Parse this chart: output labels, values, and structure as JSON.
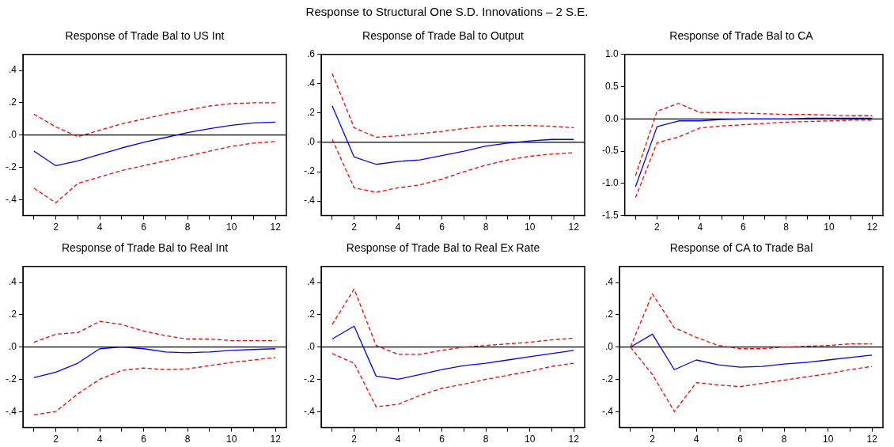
{
  "chart_data": [
    {
      "type": "line",
      "title": "Response of Trade Bal to US Int",
      "annotations": [
        "Response to Structural One S.D. Innovations – 2 S.E."
      ],
      "x": [
        1,
        2,
        3,
        4,
        5,
        6,
        7,
        8,
        9,
        10,
        11,
        12
      ],
      "xlim": [
        0.5,
        12.5
      ],
      "xticks": [
        {
          "value": 1,
          "label": null
        },
        2,
        {
          "value": 3,
          "label": null
        },
        4,
        {
          "value": 5,
          "label": null
        },
        6,
        {
          "value": 7,
          "label": null
        },
        8,
        {
          "value": 9,
          "label": null
        },
        10,
        {
          "value": 11,
          "label": null
        },
        12
      ],
      "ylim": [
        -0.5,
        0.5
      ],
      "yticks": [
        {
          "value": -0.4,
          "label": "-.4"
        },
        {
          "value": -0.2,
          "label": "-.2"
        },
        {
          "value": 0,
          "label": ".0"
        },
        {
          "value": 0.2,
          "label": ".2"
        },
        {
          "value": 0.4,
          "label": ".4"
        }
      ],
      "grid": false,
      "legend": false,
      "ref_lines": [
        {
          "axis": "y",
          "value": 0,
          "label": null,
          "color": "#000000"
        }
      ],
      "series": [
        {
          "color": "#0000ff",
          "line_style": "solid",
          "values": [
            -0.1,
            -0.19,
            -0.16,
            -0.12,
            -0.08,
            -0.045,
            -0.015,
            0.015,
            0.04,
            0.06,
            0.075,
            0.08
          ]
        },
        {
          "color": "#ff0000",
          "line_style": "dashed",
          "values": [
            0.13,
            0.05,
            -0.01,
            0.03,
            0.07,
            0.1,
            0.13,
            0.155,
            0.18,
            0.195,
            0.2,
            0.2
          ]
        },
        {
          "color": "#ff0000",
          "line_style": "dashed",
          "values": [
            -0.33,
            -0.42,
            -0.3,
            -0.26,
            -0.22,
            -0.19,
            -0.16,
            -0.13,
            -0.1,
            -0.07,
            -0.05,
            -0.04
          ]
        }
      ]
    },
    {
      "type": "line",
      "title": "Response of Trade Bal to Output",
      "x": [
        1,
        2,
        3,
        4,
        5,
        6,
        7,
        8,
        9,
        10,
        11,
        12
      ],
      "xlim": [
        0.5,
        12.5
      ],
      "xticks": [
        {
          "value": 1,
          "label": null
        },
        2,
        {
          "value": 3,
          "label": null
        },
        4,
        {
          "value": 5,
          "label": null
        },
        6,
        {
          "value": 7,
          "label": null
        },
        8,
        {
          "value": 9,
          "label": null
        },
        10,
        {
          "value": 11,
          "label": null
        },
        12
      ],
      "ylim": [
        -0.5,
        0.6
      ],
      "yticks": [
        {
          "value": -0.4,
          "label": "-.4"
        },
        {
          "value": -0.2,
          "label": "-.2"
        },
        {
          "value": 0,
          "label": ".0"
        },
        {
          "value": 0.2,
          "label": ".2"
        },
        {
          "value": 0.4,
          "label": ".4"
        },
        {
          "value": 0.6,
          "label": ".6"
        }
      ],
      "grid": false,
      "legend": false,
      "ref_lines": [
        {
          "axis": "y",
          "value": 0,
          "label": null,
          "color": "#000000"
        }
      ],
      "series": [
        {
          "color": "#0000ff",
          "line_style": "solid",
          "values": [
            0.25,
            -0.1,
            -0.15,
            -0.13,
            -0.12,
            -0.09,
            -0.06,
            -0.025,
            -0.005,
            0.01,
            0.02,
            0.02
          ]
        },
        {
          "color": "#ff0000",
          "line_style": "dashed",
          "values": [
            0.47,
            0.1,
            0.035,
            0.045,
            0.06,
            0.075,
            0.095,
            0.11,
            0.115,
            0.115,
            0.11,
            0.1
          ]
        },
        {
          "color": "#ff0000",
          "line_style": "dashed",
          "values": [
            0.02,
            -0.31,
            -0.34,
            -0.31,
            -0.29,
            -0.25,
            -0.2,
            -0.155,
            -0.12,
            -0.095,
            -0.08,
            -0.07
          ]
        }
      ]
    },
    {
      "type": "line",
      "title": "Response of Trade Bal to CA",
      "x": [
        1,
        2,
        3,
        4,
        5,
        6,
        7,
        8,
        9,
        10,
        11,
        12
      ],
      "xlim": [
        0.5,
        12.5
      ],
      "xticks": [
        {
          "value": 1,
          "label": null
        },
        2,
        {
          "value": 3,
          "label": null
        },
        4,
        {
          "value": 5,
          "label": null
        },
        6,
        {
          "value": 7,
          "label": null
        },
        8,
        {
          "value": 9,
          "label": null
        },
        10,
        {
          "value": 11,
          "label": null
        },
        12
      ],
      "ylim": [
        -1.5,
        1.0
      ],
      "yticks": [
        {
          "value": -1.5,
          "label": "-1.5"
        },
        {
          "value": -1.0,
          "label": "-1.0"
        },
        {
          "value": -0.5,
          "label": "-0.5"
        },
        {
          "value": 0,
          "label": "0.0"
        },
        {
          "value": 0.5,
          "label": "0.5"
        },
        {
          "value": 1.0,
          "label": "1.0"
        }
      ],
      "grid": false,
      "legend": false,
      "ref_lines": [
        {
          "axis": "y",
          "value": 0,
          "label": null,
          "color": "#000000"
        }
      ],
      "series": [
        {
          "color": "#0000ff",
          "line_style": "solid",
          "values": [
            -1.05,
            -0.12,
            -0.03,
            -0.03,
            -0.01,
            0,
            0,
            0,
            0.01,
            0.01,
            0.01,
            0.01
          ]
        },
        {
          "color": "#ff0000",
          "line_style": "dashed",
          "values": [
            -0.88,
            0.12,
            0.24,
            0.1,
            0.1,
            0.09,
            0.08,
            0.07,
            0.07,
            0.06,
            0.05,
            0.05
          ]
        },
        {
          "color": "#ff0000",
          "line_style": "dashed",
          "values": [
            -1.22,
            -0.37,
            -0.28,
            -0.14,
            -0.11,
            -0.09,
            -0.07,
            -0.05,
            -0.04,
            -0.03,
            -0.02,
            -0.02
          ]
        }
      ]
    },
    {
      "type": "line",
      "title": "Response of Trade Bal to Real Int",
      "x": [
        1,
        2,
        3,
        4,
        5,
        6,
        7,
        8,
        9,
        10,
        11,
        12
      ],
      "xlim": [
        0.5,
        12.5
      ],
      "xticks": [
        {
          "value": 1,
          "label": null
        },
        2,
        {
          "value": 3,
          "label": null
        },
        4,
        {
          "value": 5,
          "label": null
        },
        6,
        {
          "value": 7,
          "label": null
        },
        8,
        {
          "value": 9,
          "label": null
        },
        10,
        {
          "value": 11,
          "label": null
        },
        12
      ],
      "ylim": [
        -0.5,
        0.5
      ],
      "yticks": [
        {
          "value": -0.4,
          "label": "-.4"
        },
        {
          "value": -0.2,
          "label": "-.2"
        },
        {
          "value": 0,
          "label": ".0"
        },
        {
          "value": 0.2,
          "label": ".2"
        },
        {
          "value": 0.4,
          "label": ".4"
        }
      ],
      "grid": false,
      "legend": false,
      "ref_lines": [
        {
          "axis": "y",
          "value": 0,
          "label": null,
          "color": "#000000"
        }
      ],
      "series": [
        {
          "color": "#0000ff",
          "line_style": "solid",
          "values": [
            -0.19,
            -0.155,
            -0.1,
            -0.01,
            0,
            -0.01,
            -0.03,
            -0.035,
            -0.03,
            -0.02,
            -0.015,
            -0.01
          ]
        },
        {
          "color": "#ff0000",
          "line_style": "dashed",
          "values": [
            0.03,
            0.08,
            0.09,
            0.16,
            0.14,
            0.1,
            0.07,
            0.05,
            0.05,
            0.04,
            0.04,
            0.04
          ]
        },
        {
          "color": "#ff0000",
          "line_style": "dashed",
          "values": [
            -0.42,
            -0.4,
            -0.29,
            -0.2,
            -0.145,
            -0.13,
            -0.14,
            -0.135,
            -0.115,
            -0.095,
            -0.08,
            -0.065
          ]
        }
      ]
    },
    {
      "type": "line",
      "title": "Response of Trade Bal to Real Ex Rate",
      "x": [
        1,
        2,
        3,
        4,
        5,
        6,
        7,
        8,
        9,
        10,
        11,
        12
      ],
      "xlim": [
        0.5,
        12.5
      ],
      "xticks": [
        {
          "value": 1,
          "label": null
        },
        2,
        {
          "value": 3,
          "label": null
        },
        4,
        {
          "value": 5,
          "label": null
        },
        6,
        {
          "value": 7,
          "label": null
        },
        8,
        {
          "value": 9,
          "label": null
        },
        10,
        {
          "value": 11,
          "label": null
        },
        12
      ],
      "ylim": [
        -0.5,
        0.5
      ],
      "yticks": [
        {
          "value": -0.4,
          "label": "-.4"
        },
        {
          "value": -0.2,
          "label": "-.2"
        },
        {
          "value": 0,
          "label": ".0"
        },
        {
          "value": 0.2,
          "label": ".2"
        },
        {
          "value": 0.4,
          "label": ".4"
        }
      ],
      "grid": false,
      "legend": false,
      "ref_lines": [
        {
          "axis": "y",
          "value": 0,
          "label": null,
          "color": "#000000"
        }
      ],
      "series": [
        {
          "color": "#0000ff",
          "line_style": "solid",
          "values": [
            0.05,
            0.13,
            -0.18,
            -0.2,
            -0.17,
            -0.14,
            -0.115,
            -0.1,
            -0.08,
            -0.06,
            -0.04,
            -0.02
          ]
        },
        {
          "color": "#ff0000",
          "line_style": "dashed",
          "values": [
            0.14,
            0.36,
            0.01,
            -0.045,
            -0.045,
            -0.02,
            0,
            0.01,
            0.02,
            0.03,
            0.045,
            0.055
          ]
        },
        {
          "color": "#ff0000",
          "line_style": "dashed",
          "values": [
            -0.04,
            -0.1,
            -0.37,
            -0.355,
            -0.3,
            -0.255,
            -0.23,
            -0.2,
            -0.175,
            -0.15,
            -0.12,
            -0.1
          ]
        }
      ]
    },
    {
      "type": "line",
      "title": "Response of CA to Trade Bal",
      "x": [
        1,
        2,
        3,
        4,
        5,
        6,
        7,
        8,
        9,
        10,
        11,
        12
      ],
      "xlim": [
        0.5,
        12.5
      ],
      "xticks": [
        {
          "value": 1,
          "label": null
        },
        2,
        {
          "value": 3,
          "label": null
        },
        4,
        {
          "value": 5,
          "label": null
        },
        6,
        {
          "value": 7,
          "label": null
        },
        8,
        {
          "value": 9,
          "label": null
        },
        10,
        {
          "value": 11,
          "label": null
        },
        12
      ],
      "ylim": [
        -0.5,
        0.5
      ],
      "yticks": [
        {
          "value": -0.4,
          "label": "-.4"
        },
        {
          "value": -0.2,
          "label": "-.2"
        },
        {
          "value": 0,
          "label": ".0"
        },
        {
          "value": 0.2,
          "label": ".2"
        },
        {
          "value": 0.4,
          "label": ".4"
        }
      ],
      "grid": false,
      "legend": false,
      "ref_lines": [
        {
          "axis": "y",
          "value": 0,
          "label": null,
          "color": "#000000"
        }
      ],
      "series": [
        {
          "color": "#0000ff",
          "line_style": "solid",
          "values": [
            0,
            0.08,
            -0.14,
            -0.08,
            -0.11,
            -0.125,
            -0.12,
            -0.105,
            -0.095,
            -0.08,
            -0.065,
            -0.05
          ]
        },
        {
          "color": "#ff0000",
          "line_style": "dashed",
          "values": [
            0,
            0.33,
            0.12,
            0.06,
            0.01,
            -0.01,
            -0.01,
            0,
            0.005,
            0.01,
            0.02,
            0.02
          ]
        },
        {
          "color": "#ff0000",
          "line_style": "dashed",
          "values": [
            0,
            -0.17,
            -0.4,
            -0.22,
            -0.235,
            -0.245,
            -0.225,
            -0.205,
            -0.185,
            -0.165,
            -0.14,
            -0.12
          ]
        }
      ]
    }
  ]
}
